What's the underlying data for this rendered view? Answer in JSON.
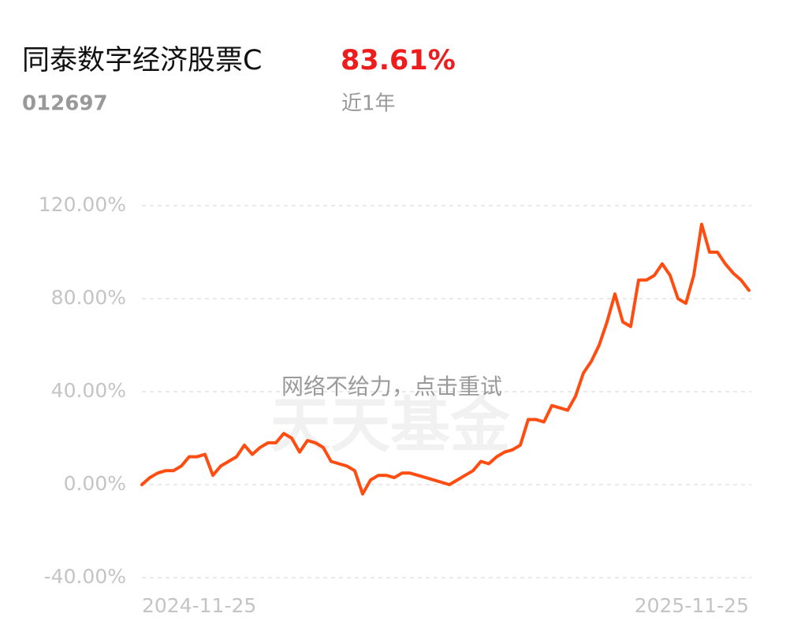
{
  "chart_data": {
    "type": "line",
    "title": "同泰数字经济股票C",
    "return_text": "83.61%",
    "fund_code": "012697",
    "period": "近1年",
    "watermark": "天天基金",
    "overlay_text": "网络不给力，点击重试",
    "categories": [
      "2024-11-25",
      null,
      null,
      null,
      null,
      null,
      null,
      null,
      null,
      null,
      null,
      null,
      null,
      null,
      null,
      null,
      null,
      null,
      null,
      null,
      null,
      null,
      null,
      null,
      null,
      null,
      null,
      null,
      null,
      null,
      null,
      null,
      null,
      null,
      null,
      null,
      null,
      null,
      null,
      null,
      null,
      null,
      null,
      null,
      null,
      null,
      null,
      null,
      null,
      null,
      null,
      null,
      null,
      null,
      null,
      null,
      null,
      null,
      null,
      null,
      null,
      null,
      null,
      null,
      null,
      null,
      null,
      null,
      null,
      null,
      null,
      null,
      null,
      null,
      null,
      null,
      null,
      "2025-11-25"
    ],
    "series": [
      {
        "color": "#ff4d12",
        "values": [
          0,
          3,
          5,
          6,
          6,
          8,
          12,
          12,
          13,
          4,
          8,
          10,
          12,
          17,
          13,
          16,
          18,
          18,
          22,
          20,
          14,
          19,
          18,
          16,
          10,
          9,
          8,
          6,
          -4,
          2,
          4,
          4,
          3,
          5,
          5,
          4,
          3,
          2,
          1,
          0,
          2,
          4,
          6,
          10,
          9,
          12,
          14,
          15,
          17,
          28,
          28,
          27,
          34,
          33,
          32,
          38,
          48,
          53,
          60,
          70,
          82,
          70,
          68,
          88,
          88,
          90,
          95,
          90,
          80,
          78,
          90,
          112,
          100,
          100,
          95,
          91,
          88,
          83.61
        ]
      }
    ],
    "ylim": [
      -40,
      120
    ],
    "yticks": [
      {
        "value": -40,
        "label": "-40.00%"
      },
      {
        "value": 0,
        "label": "0.00%"
      },
      {
        "value": 40,
        "label": "40.00%"
      },
      {
        "value": 80,
        "label": "80.00%"
      },
      {
        "value": 120,
        "label": "120.00%"
      }
    ],
    "grid": true
  }
}
